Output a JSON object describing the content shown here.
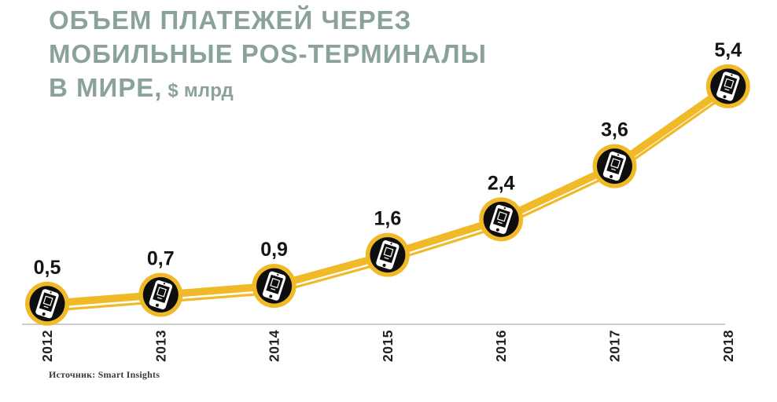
{
  "title": {
    "line1": "ОБЪЕМ ПЛАТЕЖЕЙ ЧЕРЕЗ",
    "line2": "МОБИЛЬНЫЕ POS-ТЕРМИНАЛЫ",
    "line3": "В МИРЕ,",
    "unit": "$ млрд"
  },
  "source": "Источник: Smart Insights",
  "colors": {
    "accent_yellow": "#F0B928",
    "marker_black": "#0E0E0E",
    "title_teal": "#8BA19B",
    "axis_gray": "#CCCCCC",
    "label_black": "#141414",
    "background": "#FFFFFF"
  },
  "chart_data": {
    "type": "line",
    "title": "ОБЪЕМ ПЛАТЕЖЕЙ ЧЕРЕЗ МОБИЛЬНЫЕ POS-ТЕРМИНАЛЫ В МИРЕ",
    "ylabel": "$ млрд",
    "xlabel": "",
    "categories": [
      "2012",
      "2013",
      "2014",
      "2015",
      "2016",
      "2017",
      "2018"
    ],
    "values": [
      0.5,
      0.7,
      0.9,
      1.6,
      2.4,
      3.6,
      5.4
    ],
    "value_labels": [
      "0,5",
      "0,7",
      "0,9",
      "1,6",
      "2,4",
      "3,6",
      "5,4"
    ],
    "ylim": [
      0,
      6
    ],
    "grid": false,
    "legend_position": "none",
    "line_style": "double-yellow",
    "marker_icon": "smartphone-icon",
    "source": "Smart Insights"
  }
}
